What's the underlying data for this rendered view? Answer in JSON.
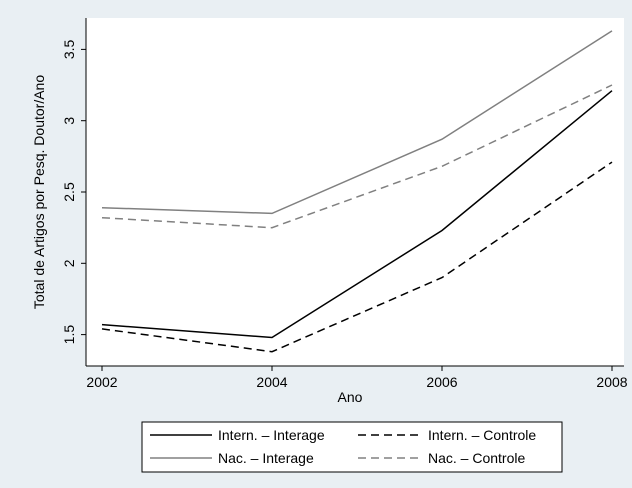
{
  "chart_data": {
    "type": "line",
    "title": "",
    "xlabel": "Ano",
    "ylabel": "Total de Artigos por Pesq. Doutor/Ano",
    "x": [
      2002,
      2004,
      2006,
      2008
    ],
    "x_ticks": [
      "2002",
      "2004",
      "2006",
      "2008"
    ],
    "y_ticks": [
      "1.5",
      "2",
      "2.5",
      "3",
      "3.5"
    ],
    "xlim": [
      2002,
      2008
    ],
    "ylim": [
      1.35,
      3.65
    ],
    "grid": false,
    "legend_position": "bottom",
    "series": [
      {
        "name": "Intern. – Interage",
        "values": [
          1.57,
          1.48,
          2.23,
          3.21
        ],
        "color": "#000000",
        "dash": "solid"
      },
      {
        "name": "Intern. – Controle",
        "values": [
          1.54,
          1.38,
          1.9,
          2.71
        ],
        "color": "#000000",
        "dash": "dashed"
      },
      {
        "name": "Nac. – Interage",
        "values": [
          2.39,
          2.35,
          2.87,
          3.63
        ],
        "color": "#808080",
        "dash": "solid"
      },
      {
        "name": "Nac. – Controle",
        "values": [
          2.32,
          2.25,
          2.68,
          3.25
        ],
        "color": "#808080",
        "dash": "dashed"
      }
    ]
  }
}
